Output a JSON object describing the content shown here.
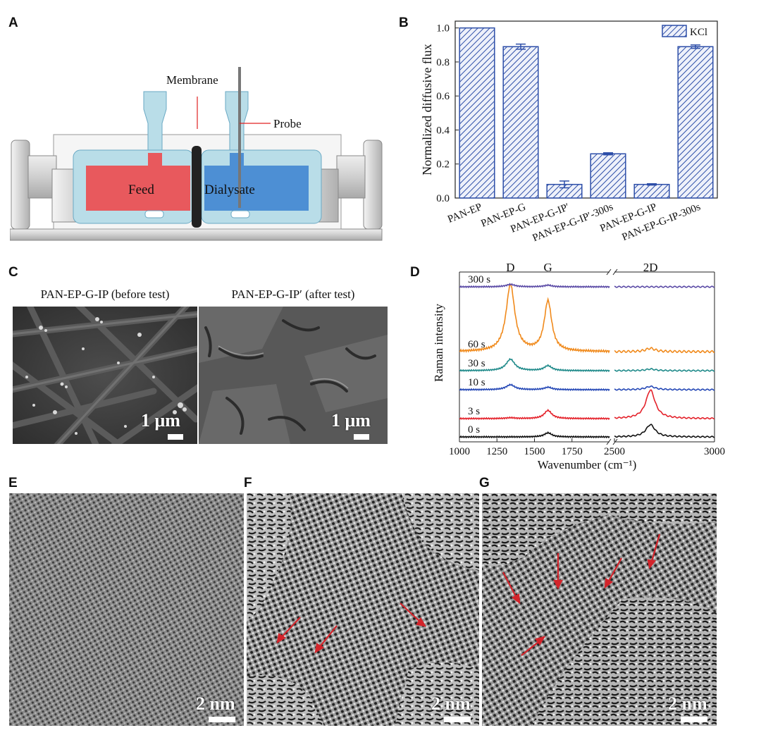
{
  "panels": {
    "a": "A",
    "b": "B",
    "c": "C",
    "d": "D",
    "e": "E",
    "f": "F",
    "g": "G"
  },
  "panel_a": {
    "membrane_label": "Membrane",
    "probe_label": "Probe",
    "feed_label": "Feed",
    "dialysate_label": "Dialysate",
    "colors": {
      "feed": "#e8595d",
      "dialysate": "#4d8fd4",
      "cell": "#b9dde8"
    }
  },
  "panel_c": {
    "left_caption": "PAN-EP-G-IP (before test)",
    "right_caption": "PAN-EP-G-IP′ (after test)",
    "left_scale": "1 μm",
    "right_scale": "1 μm"
  },
  "panel_e": {
    "scale": "2 nm"
  },
  "panel_f": {
    "scale": "2 nm"
  },
  "panel_g": {
    "scale": "2 nm"
  },
  "chart_data": [
    {
      "type": "bar",
      "panel": "B",
      "title": "",
      "xlabel": "",
      "ylabel": "Normalized diffusive flux",
      "ylim": [
        0.0,
        1.04
      ],
      "yticks": [
        "0.0",
        "0.2",
        "0.4",
        "0.6",
        "0.8",
        "1.0"
      ],
      "categories": [
        "PAN-EP",
        "PAN-EP-G",
        "PAN-EP-G-IP′",
        "PAN-EP-G-IP′-300s",
        "PAN-EP-G-IP",
        "PAN-EP-G-IP-300s"
      ],
      "series": [
        {
          "name": "KCl",
          "values": [
            1.0,
            0.89,
            0.08,
            0.26,
            0.08,
            0.89
          ],
          "errors": [
            0.0,
            0.015,
            0.02,
            0.006,
            0.004,
            0.01
          ]
        }
      ],
      "bar_color": "#2d4ea8",
      "legend": "KCl",
      "legend_position": "top-right"
    },
    {
      "type": "line",
      "panel": "D",
      "title": "",
      "xlabel": "Wavenumber (cm⁻¹)",
      "ylabel": "Raman intensity",
      "xlim_left": [
        1000,
        2000
      ],
      "xlim_right": [
        2500,
        3000
      ],
      "xticks": [
        "1000",
        "1250",
        "1500",
        "1750",
        "2500",
        "3000"
      ],
      "peak_labels": [
        "D",
        "G",
        "2D"
      ],
      "series": [
        {
          "name": "0 s",
          "color": "#111111",
          "D": 0.0,
          "G": 0.1,
          "D2": 0.3
        },
        {
          "name": "3 s",
          "color": "#e4222b",
          "D": 0.02,
          "G": 0.2,
          "D2": 0.7
        },
        {
          "name": "10 s",
          "color": "#2548b6",
          "D": 0.12,
          "G": 0.06,
          "D2": 0.08
        },
        {
          "name": "30 s",
          "color": "#1f8a8a",
          "D": 0.28,
          "G": 0.12,
          "D2": 0.04
        },
        {
          "name": "60 s",
          "color": "#f08a1c",
          "D": 1.0,
          "G": 0.75,
          "D2": 0.05
        },
        {
          "name": "300 s",
          "color": "#5b4ba6",
          "D": 0.06,
          "G": 0.04,
          "D2": 0.0
        }
      ]
    }
  ]
}
